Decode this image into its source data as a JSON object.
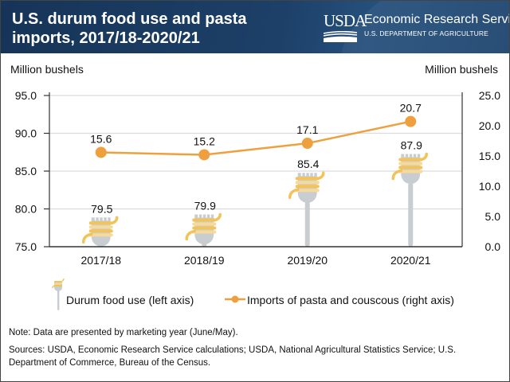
{
  "header": {
    "title": "U.S. durum food use and pasta imports, 2017/18-2020/21",
    "logo_text": "USDA",
    "agency_name": "Economic Research Service",
    "department": "U.S. DEPARTMENT OF AGRICULTURE"
  },
  "colors": {
    "header_bg": "#1d4068",
    "line": "#efa03e",
    "pasta": "#f2c35a",
    "pasta_light": "#f7d998",
    "fork": "#c8cdd2",
    "grid": "#dcdcdc",
    "axis": "#333333"
  },
  "chart_data": {
    "type": "bar+line",
    "title": "U.S. durum food use and pasta imports, 2017/18-2020/21",
    "categories": [
      "2017/18",
      "2018/19",
      "2019/20",
      "2020/21"
    ],
    "left_axis": {
      "label": "Million bushels",
      "ylim": [
        75.0,
        95.0
      ],
      "ticks": [
        "75.0",
        "80.0",
        "85.0",
        "90.0",
        "95.0"
      ]
    },
    "right_axis": {
      "label": "Million bushels",
      "ylim": [
        0.0,
        25.0
      ],
      "ticks": [
        "0.0",
        "5.0",
        "10.0",
        "15.0",
        "20.0",
        "25.0"
      ]
    },
    "grid": true,
    "series": [
      {
        "name": "Durum food use (left axis)",
        "type": "pictograph-bar",
        "axis": "left",
        "values": [
          79.5,
          79.9,
          85.4,
          87.9
        ],
        "labels": [
          "79.5",
          "79.9",
          "85.4",
          "87.9"
        ]
      },
      {
        "name": "Imports of pasta and couscous (right axis)",
        "type": "line",
        "axis": "right",
        "values": [
          15.6,
          15.2,
          17.1,
          20.7
        ],
        "labels": [
          "15.6",
          "15.2",
          "17.1",
          "20.7"
        ]
      }
    ],
    "legend_placement": "bottom"
  },
  "legend": {
    "durum_label": "Durum food use (left axis)",
    "imports_label": "Imports of pasta and couscous (right axis)"
  },
  "footer": {
    "note": "Note: Data are presented by marketing year (June/May).",
    "sources": "Sources: USDA, Economic Research Service calculations; USDA, National Agricultural Statistics Service; U.S. Department of Commerce, Bureau of the Census."
  }
}
